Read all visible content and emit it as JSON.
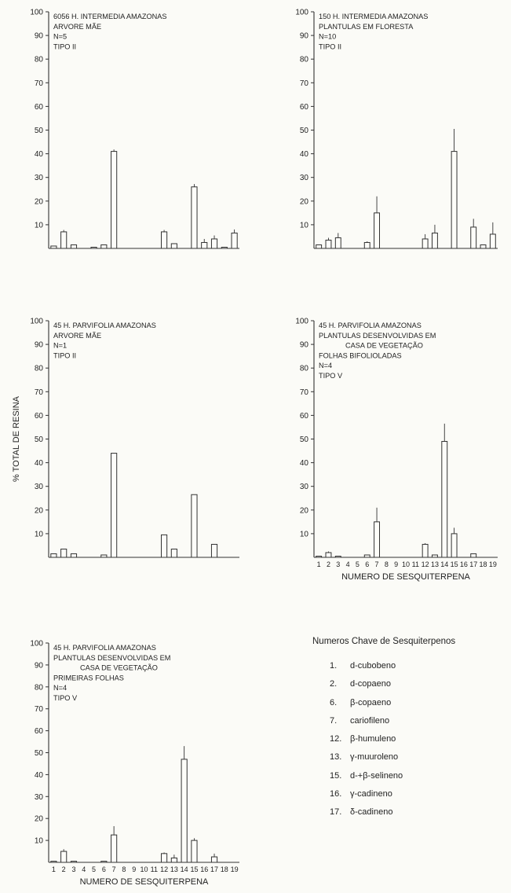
{
  "chart_data": [
    {
      "type": "bar",
      "panel_lines": [
        "6056 H. INTERMEDIA AMAZONAS",
        "ARVORE MÃE",
        "N=5",
        "TIPO II"
      ],
      "ylim": [
        0,
        100
      ],
      "yticks": [
        10,
        20,
        30,
        40,
        50,
        60,
        70,
        80,
        90,
        100
      ],
      "xlim": [
        0,
        19
      ],
      "xticks_labeled": false,
      "xlabel": "",
      "values": [
        1,
        7,
        1.5,
        null,
        0.5,
        1.5,
        41,
        null,
        null,
        null,
        null,
        7,
        2,
        null,
        26,
        2.5,
        4,
        0.5,
        6.5
      ],
      "errors": [
        0,
        0.8,
        0,
        0,
        0,
        0,
        0.8,
        0,
        0,
        0,
        0,
        0.8,
        0,
        0,
        1.2,
        1.5,
        1.5,
        0,
        1.5
      ]
    },
    {
      "type": "bar",
      "panel_lines": [
        "150 H. INTERMEDIA AMAZONAS",
        "PLANTULAS EM FLORESTA",
        "N=10",
        "TIPO II"
      ],
      "ylim": [
        0,
        100
      ],
      "yticks": [
        10,
        20,
        30,
        40,
        50,
        60,
        70,
        80,
        90,
        100
      ],
      "xlim": [
        0,
        19
      ],
      "xticks_labeled": false,
      "xlabel": "",
      "values": [
        1.5,
        3.5,
        4.5,
        null,
        null,
        2.5,
        15,
        null,
        null,
        null,
        null,
        4,
        6.5,
        null,
        41,
        null,
        9,
        1.5,
        6
      ],
      "errors": [
        0,
        1,
        2,
        0,
        0,
        0.5,
        7,
        0,
        0,
        0,
        0,
        2,
        3.5,
        0,
        9.5,
        0,
        3.5,
        0,
        5
      ]
    },
    {
      "type": "bar",
      "panel_lines": [
        "45 H. PARVIFOLIA AMAZONAS",
        "ARVORE MÃE",
        "N=1",
        "TIPO II"
      ],
      "ylim": [
        0,
        100
      ],
      "yticks": [
        10,
        20,
        30,
        40,
        50,
        60,
        70,
        80,
        90,
        100
      ],
      "xlim": [
        0,
        19
      ],
      "xticks_labeled": false,
      "xlabel": "",
      "ylabel": "% TOTAL DE RESINA",
      "values": [
        1.5,
        3.5,
        1.5,
        null,
        null,
        1,
        44,
        null,
        null,
        null,
        null,
        9.5,
        3.5,
        null,
        26.5,
        null,
        5.5,
        null,
        null
      ],
      "errors": [
        0,
        0,
        0,
        0,
        0,
        0,
        0,
        0,
        0,
        0,
        0,
        0,
        0,
        0,
        0,
        0,
        0,
        0,
        0
      ]
    },
    {
      "type": "bar",
      "panel_lines": [
        "45 H. PARVIFOLIA AMAZONAS",
        "PLANTULAS DESENVOLVIDAS EM",
        "CASA DE VEGETAÇÃO",
        "FOLHAS BIFOLIOLADAS",
        "N=4",
        "TIPO V"
      ],
      "ylim": [
        0,
        100
      ],
      "yticks": [
        10,
        20,
        30,
        40,
        50,
        60,
        70,
        80,
        90,
        100
      ],
      "xlim": [
        0,
        19
      ],
      "xticks_labeled": true,
      "xlabel": "NUMERO DE SESQUITERPENA",
      "values": [
        0.5,
        2,
        0.5,
        null,
        null,
        1,
        15,
        null,
        null,
        null,
        null,
        5.5,
        1,
        49,
        10,
        null,
        1.5,
        null,
        null
      ],
      "errors": [
        0,
        0.5,
        0,
        0,
        0,
        0,
        6,
        0,
        0,
        0,
        0,
        0.5,
        0,
        7.5,
        2.5,
        0,
        0,
        0,
        0
      ]
    },
    {
      "type": "bar",
      "panel_lines": [
        "45 H. PARVIFOLIA AMAZONAS",
        "PLANTULAS DESENVOLVIDAS EM",
        "CASA DE VEGETAÇÃO",
        "PRIMEIRAS FOLHAS",
        "N=4",
        "TIPO V"
      ],
      "ylim": [
        0,
        100
      ],
      "yticks": [
        10,
        20,
        30,
        40,
        50,
        60,
        70,
        80,
        90,
        100
      ],
      "xlim": [
        0,
        19
      ],
      "xticks_labeled": true,
      "xlabel": "NUMERO DE SESQUITERPENA",
      "values": [
        0.5,
        5,
        0.5,
        null,
        null,
        0.5,
        12.5,
        null,
        null,
        null,
        null,
        4,
        2,
        47,
        10,
        null,
        2.5,
        null,
        null
      ],
      "errors": [
        0,
        1,
        0,
        0,
        0,
        0,
        4,
        0,
        0,
        0,
        0,
        0.5,
        1.5,
        6,
        1,
        0,
        1.5,
        0,
        0
      ]
    }
  ],
  "x_tick_labels": [
    "1",
    "2",
    "3",
    "4",
    "5",
    "6",
    "7",
    "8",
    "9",
    "10",
    "11",
    "12",
    "13",
    "14",
    "15",
    "16",
    "17",
    "18",
    "19"
  ],
  "legend": {
    "title": "Numeros Chave de Sesquiterpenos",
    "items": [
      {
        "key": "1.",
        "name": "d-cubobeno"
      },
      {
        "key": "2.",
        "name": "d-copaeno"
      },
      {
        "key": "6.",
        "name": "β-copaeno"
      },
      {
        "key": "7.",
        "name": "cariofileno"
      },
      {
        "key": "12.",
        "name": "β-humuleno"
      },
      {
        "key": "13.",
        "name": "γ-muuroleno"
      },
      {
        "key": "15.",
        "name": "d-+β-selineno"
      },
      {
        "key": "16.",
        "name": "γ-cadineno"
      },
      {
        "key": "17.",
        "name": "δ-cadineno"
      }
    ]
  }
}
